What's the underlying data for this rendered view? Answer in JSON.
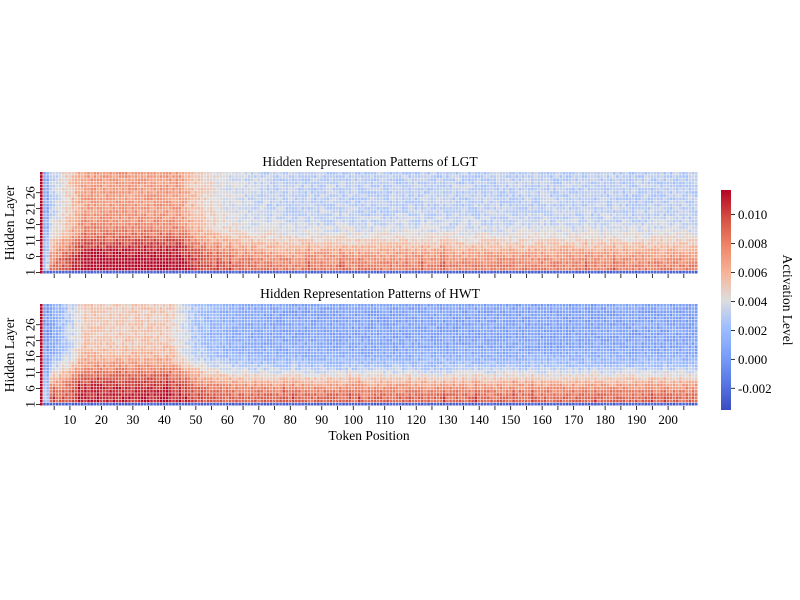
{
  "chart_data": [
    {
      "type": "heatmap",
      "title": "Hidden Representation Patterns of LGT",
      "ylabel": "Hidden Layer",
      "xlabel": "",
      "y_tick_labels": [
        "1",
        "6",
        "11",
        "16",
        "21",
        "26"
      ],
      "x_tick_labels": [],
      "n_layers": 32,
      "n_tokens": 209,
      "profile": {
        "description_values": "approximate activation levels",
        "first_token_value": 0.012,
        "bottom_layer_value": -0.003,
        "burst_tokens": [
          15,
          45
        ],
        "burst_peak": 0.012,
        "low_layer_tail": 0.008,
        "upper_layer_tail": 0.003
      }
    },
    {
      "type": "heatmap",
      "title": "Hidden Representation Patterns of HWT",
      "ylabel": "Hidden Layer",
      "xlabel": "Token Position",
      "y_tick_labels": [
        "1",
        "6",
        "11",
        "16",
        "21",
        "26"
      ],
      "x_tick_labels": [
        "10",
        "20",
        "30",
        "40",
        "50",
        "60",
        "70",
        "80",
        "90",
        "100",
        "110",
        "120",
        "130",
        "140",
        "150",
        "160",
        "170",
        "180",
        "190",
        "200"
      ],
      "n_layers": 32,
      "n_tokens": 209,
      "profile": {
        "description_values": "approximate activation levels",
        "first_token_value": 0.012,
        "bottom_layer_value": -0.003,
        "burst_tokens": [
          15,
          42
        ],
        "burst_peak": 0.011,
        "low_layer_tail": 0.009,
        "upper_layer_tail": 0.0005
      }
    }
  ],
  "colorbar": {
    "label": "Activation Level",
    "vmin": -0.0035,
    "vmax": 0.0117,
    "tick_values": [
      -0.002,
      0.0,
      0.002,
      0.004,
      0.006,
      0.008,
      0.01
    ],
    "tick_labels": [
      "-0.002",
      "0.000",
      "0.002",
      "0.004",
      "0.006",
      "0.008",
      "0.010"
    ],
    "colormap": "coolwarm",
    "colors": {
      "low": "#3b4cc0",
      "mid": "#dddddd",
      "high": "#b40426"
    }
  }
}
